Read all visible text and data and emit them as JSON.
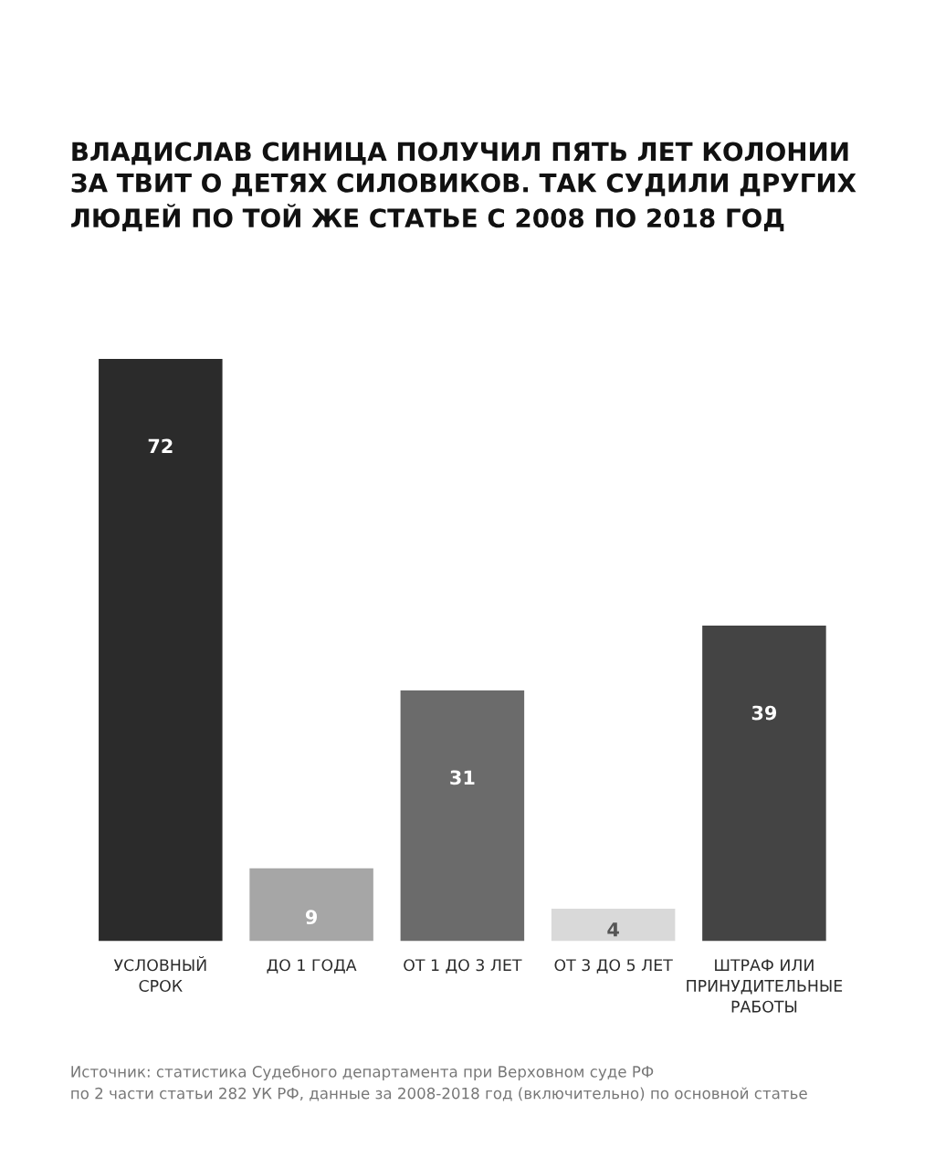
{
  "chart_data": {
    "type": "bar",
    "title": "ВЛАДИСЛАВ СИНИЦА ПОЛУЧИЛ ПЯТЬ ЛЕТ КОЛОНИИ\nЗА ТВИТ О ДЕТЯХ СИЛОВИКОВ. ТАК СУДИЛИ ДРУГИХ\nЛЮДЕЙ ПО ТОЙ ЖЕ СТАТЬЕ С 2008 ПО 2018 ГОД",
    "categories": [
      "УСЛОВНЫЙ\nСРОК",
      "ДО 1 ГОДА",
      "ОТ 1 ДО 3 ЛЕТ",
      "ОТ 3 ДО 5 ЛЕТ",
      "ШТРАФ ИЛИ\nПРИНУДИТЕЛЬНЫЕ\nРАБОТЫ"
    ],
    "values": [
      72,
      9,
      31,
      4,
      39
    ],
    "colors": [
      "#2b2b2b",
      "#a6a6a6",
      "#6b6b6b",
      "#d9d9d9",
      "#444444"
    ],
    "data_labels": true,
    "annotations": [
      "Источник: статистика Судебного департамента при Верховном суде РФ\nпо 2 части статьи 282 УК РФ, данные за 2008-2018 год (включительно) по основной статье"
    ]
  }
}
